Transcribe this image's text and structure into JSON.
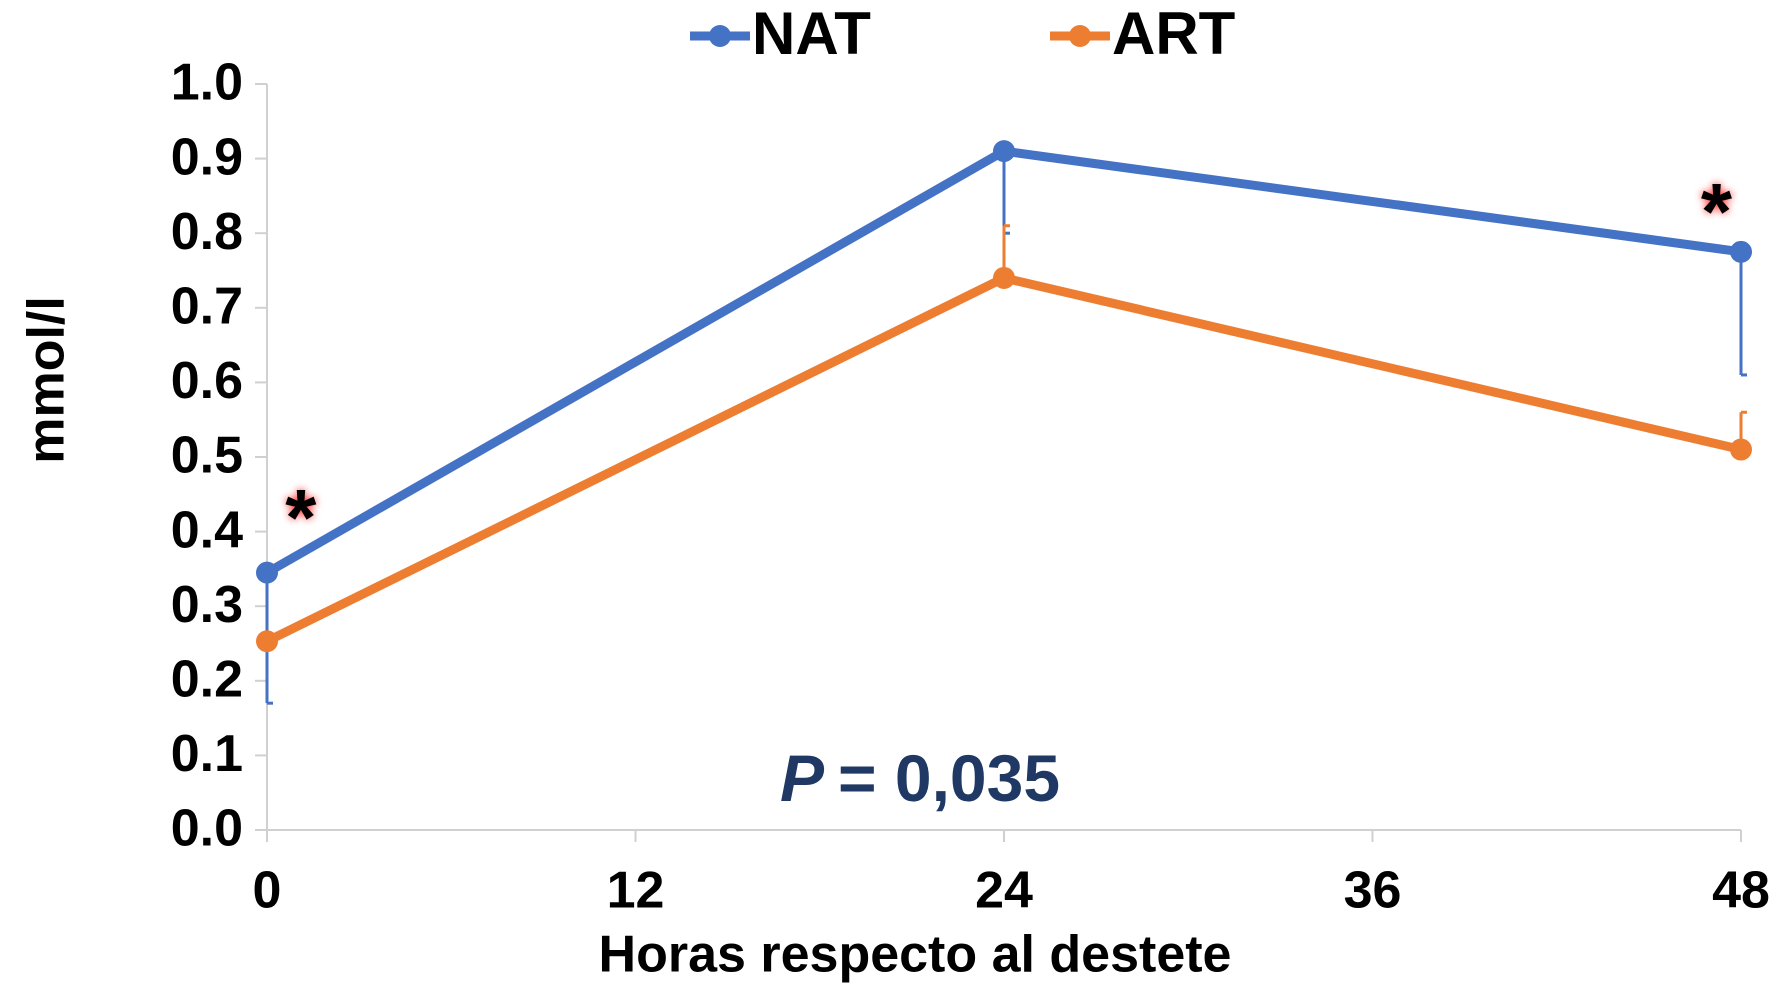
{
  "chart_data": {
    "type": "line",
    "x_label": "Horas respecto al destete",
    "y_label": "mmol/l",
    "x": [
      0,
      24,
      48
    ],
    "series": [
      {
        "name": "NAT",
        "color": "#4472c4",
        "values": [
          0.345,
          0.91,
          0.775
        ],
        "errors": [
          0.175,
          0.11,
          0.165
        ],
        "error_side": "lower"
      },
      {
        "name": "ART",
        "color": "#ed7d31",
        "values": [
          0.253,
          0.74,
          0.51
        ],
        "errors": [
          null,
          0.07,
          0.05
        ],
        "error_side": "upper"
      }
    ],
    "xlim": [
      0,
      48
    ],
    "xticks": [
      0,
      12,
      24,
      36,
      48
    ],
    "ylim": [
      0,
      1
    ],
    "yticks": [
      {
        "value": 0,
        "label": "0.0"
      },
      0.1,
      0.2,
      0.3,
      0.4,
      0.5,
      0.6,
      0.7,
      0.8,
      0.9,
      {
        "value": 1,
        "label": "1.0"
      }
    ],
    "legend": "top",
    "annotations": [
      {
        "text": "*",
        "x": 1.1,
        "y": 0.44
      },
      {
        "text": "*",
        "x": 47.2,
        "y": 0.85
      }
    ],
    "p_value": {
      "symbol": "P",
      "text": "= 0,035"
    }
  }
}
